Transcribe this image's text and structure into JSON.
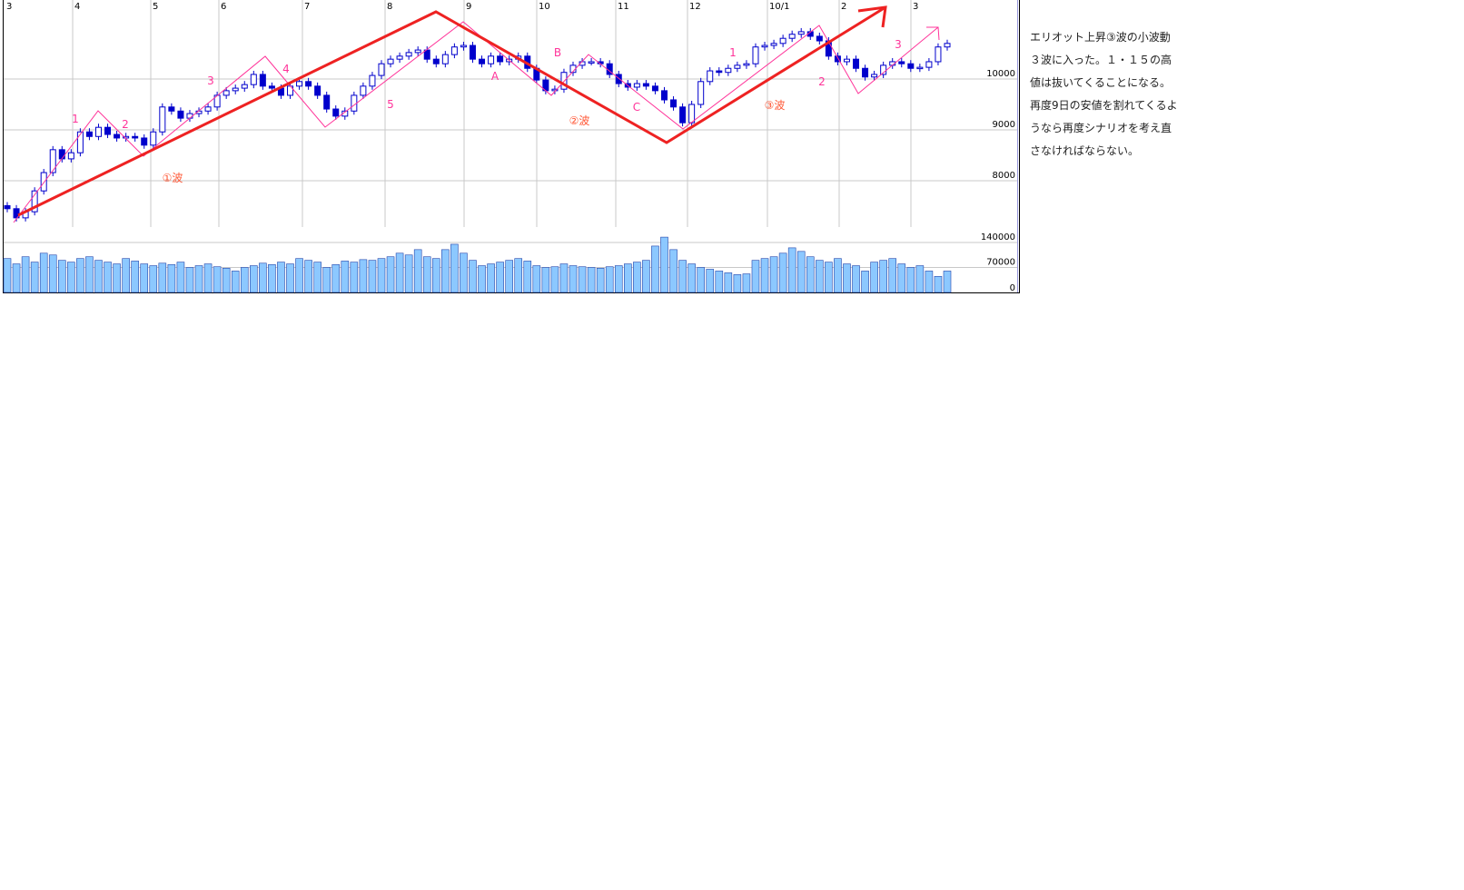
{
  "chart_data": {
    "type": "candlestick",
    "title": "",
    "x_tick_labels": [
      "3",
      "4",
      "5",
      "6",
      "7",
      "8",
      "9",
      "10",
      "11",
      "12",
      "10/1",
      "2",
      "3"
    ],
    "price_axis": {
      "ticks": [
        8000,
        9000,
        10000
      ],
      "tick_labels": [
        "8000",
        "9000",
        "10000"
      ],
      "range": [
        7100,
        11550
      ]
    },
    "volume_axis": {
      "ticks": [
        0,
        70000,
        140000
      ],
      "tick_labels": [
        "0",
        "70000",
        "140000"
      ]
    },
    "grid": true,
    "closes": [
      7450,
      7270,
      7390,
      7800,
      8160,
      8610,
      8430,
      8550,
      8960,
      8870,
      9050,
      8910,
      8840,
      8870,
      8840,
      8700,
      8960,
      9450,
      9370,
      9230,
      9320,
      9370,
      9450,
      9680,
      9770,
      9820,
      9890,
      10090,
      9860,
      9820,
      9680,
      9860,
      9950,
      9860,
      9680,
      9410,
      9270,
      9370,
      9680,
      9860,
      10070,
      10300,
      10390,
      10450,
      10520,
      10570,
      10390,
      10300,
      10480,
      10630,
      10660,
      10390,
      10300,
      10450,
      10340,
      10390,
      10450,
      10210,
      9980,
      9770,
      9800,
      10130,
      10270,
      10340,
      10340,
      10300,
      10090,
      9910,
      9840,
      9910,
      9860,
      9770,
      9590,
      9450,
      9140,
      9500,
      9950,
      10160,
      10130,
      10210,
      10270,
      10300,
      10630,
      10660,
      10700,
      10800,
      10880,
      10930,
      10840,
      10750,
      10450,
      10340,
      10390,
      10210,
      10040,
      10090,
      10270,
      10340,
      10300,
      10210,
      10230,
      10340,
      10630,
      10700
    ],
    "volumes": [
      95000,
      80000,
      100000,
      85000,
      110000,
      105000,
      90000,
      85000,
      95000,
      100000,
      90000,
      85000,
      80000,
      95000,
      88000,
      80000,
      75000,
      82000,
      78000,
      85000,
      70000,
      75000,
      80000,
      72000,
      68000,
      60000,
      70000,
      75000,
      82000,
      78000,
      85000,
      80000,
      95000,
      90000,
      85000,
      70000,
      78000,
      88000,
      85000,
      92000,
      90000,
      95000,
      100000,
      110000,
      105000,
      120000,
      100000,
      95000,
      120000,
      135000,
      110000,
      90000,
      75000,
      80000,
      85000,
      90000,
      95000,
      88000,
      75000,
      70000,
      72000,
      80000,
      75000,
      72000,
      70000,
      68000,
      72000,
      75000,
      80000,
      85000,
      90000,
      130000,
      155000,
      120000,
      90000,
      80000,
      70000,
      65000,
      60000,
      55000,
      50000,
      52000,
      90000,
      95000,
      100000,
      110000,
      125000,
      115000,
      100000,
      90000,
      85000,
      95000,
      80000,
      75000,
      60000,
      85000,
      90000,
      95000,
      80000,
      70000,
      75000,
      60000,
      45000,
      60000
    ],
    "colors": {
      "candle": "#0000cc",
      "volume_fill": "#8cc8ff",
      "trend_line": "#ee2222",
      "sub_wave": "#ff3399",
      "wave_label": "#ff5533"
    },
    "wave_labels": {
      "sub": [
        "1",
        "2",
        "3",
        "4",
        "5",
        "A",
        "B",
        "C",
        "1",
        "2",
        "3"
      ],
      "main": [
        "①波",
        "②波",
        "③波"
      ]
    }
  },
  "note": {
    "lines": [
      "エリオット上昇③波の小波動",
      "３波に入った。１・１５の高",
      "値は抜いてくることになる。",
      "再度9日の安値を割れてくるよ",
      "うなら再度シナリオを考え直",
      "さなければならない。"
    ]
  }
}
